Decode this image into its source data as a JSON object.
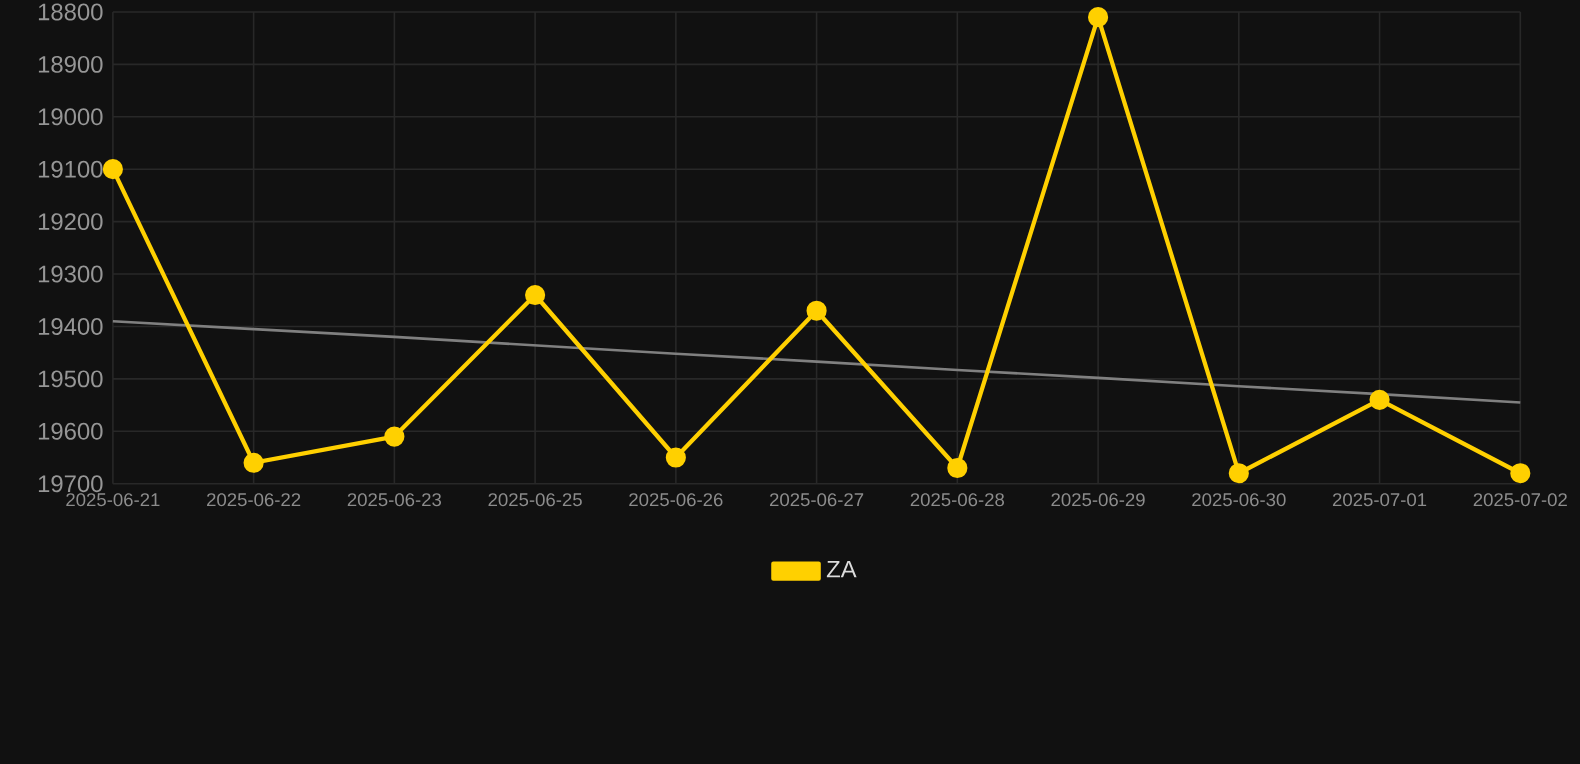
{
  "chart_data": {
    "type": "line",
    "categories": [
      "2025-06-21",
      "2025-06-22",
      "2025-06-23",
      "2025-06-25",
      "2025-06-26",
      "2025-06-27",
      "2025-06-28",
      "2025-06-29",
      "2025-06-30",
      "2025-07-01",
      "2025-07-02"
    ],
    "series": [
      {
        "name": "ZA",
        "color": "#ffd000",
        "marker": "circle",
        "values": [
          19100,
          19660,
          19610,
          19340,
          19650,
          19370,
          19670,
          18810,
          19680,
          19540,
          19680
        ]
      },
      {
        "color": "#808080",
        "marker": "none",
        "values": [
          19390,
          19405,
          19420,
          19436,
          19452,
          19467,
          19483,
          19498,
          19514,
          19529,
          19545
        ]
      }
    ],
    "ylim": [
      19700,
      18800
    ],
    "yticks": [
      18800,
      18900,
      19000,
      19100,
      19200,
      19300,
      19400,
      19500,
      19600,
      19700
    ],
    "grid": true,
    "legend": "bottom",
    "line_style": "solid"
  }
}
